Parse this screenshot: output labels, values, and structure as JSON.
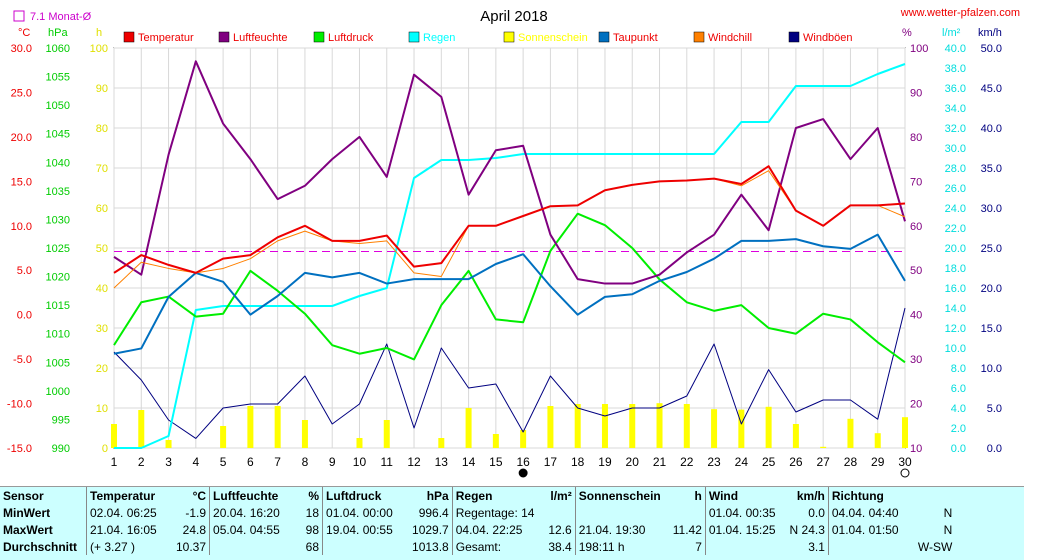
{
  "chart_data": {
    "type": "line",
    "title": "April 2018",
    "url": "www.wetter-pfalzen.com",
    "avg_label": "7.1 Monat-Ø",
    "axis_units": {
      "temp": "°C",
      "press": "hPa",
      "sun": "h",
      "hum": "%",
      "rain": "l/m²",
      "wind": "km/h"
    },
    "axes": {
      "temp": {
        "min": -15,
        "max": 30,
        "ticks": [
          "30.0",
          "25.0",
          "20.0",
          "15.0",
          "10.0",
          "5.0",
          "0.0",
          "-5.0",
          "-10.0",
          "-15.0"
        ]
      },
      "press": {
        "min": 990,
        "max": 1060,
        "ticks": [
          "1060",
          "1055",
          "1050",
          "1045",
          "1040",
          "1035",
          "1030",
          "1025",
          "1020",
          "1015",
          "1010",
          "1005",
          "1000",
          "995",
          "990"
        ]
      },
      "sun": {
        "min": 0,
        "max": 100,
        "ticks": [
          "100",
          "90",
          "80",
          "70",
          "60",
          "50",
          "40",
          "30",
          "20",
          "10",
          "0"
        ]
      },
      "hum": {
        "min": 10,
        "max": 100,
        "ticks": [
          "100",
          "90",
          "80",
          "70",
          "60",
          "50",
          "40",
          "30",
          "20",
          "10"
        ]
      },
      "rain": {
        "min": 0,
        "max": 40,
        "ticks": [
          "40.0",
          "38.0",
          "36.0",
          "34.0",
          "32.0",
          "30.0",
          "28.0",
          "26.0",
          "24.0",
          "22.0",
          "20.0",
          "18.0",
          "16.0",
          "14.0",
          "12.0",
          "10.0",
          "8.0",
          "6.0",
          "4.0",
          "2.0",
          "0.0"
        ]
      },
      "wind": {
        "min": 0,
        "max": 50,
        "ticks": [
          "50.0",
          "45.0",
          "40.0",
          "35.0",
          "30.0",
          "25.0",
          "20.0",
          "15.0",
          "10.0",
          "5.0",
          "0.0"
        ]
      }
    },
    "days": [
      "1",
      "2",
      "3",
      "4",
      "5",
      "6",
      "7",
      "8",
      "9",
      "10",
      "11",
      "12",
      "13",
      "14",
      "15",
      "16",
      "17",
      "18",
      "19",
      "20",
      "21",
      "22",
      "23",
      "24",
      "25",
      "26",
      "27",
      "28",
      "29",
      "30"
    ],
    "legend": [
      {
        "name": "Temperatur",
        "color": "#ee0000"
      },
      {
        "name": "Luftfeuchte",
        "color": "#800080"
      },
      {
        "name": "Luftdruck",
        "color": "#00ee00"
      },
      {
        "name": "Regen",
        "color": "#00ffff"
      },
      {
        "name": "Sonnenschein",
        "color": "#ffff00"
      },
      {
        "name": "Taupunkt",
        "color": "#0070c0"
      },
      {
        "name": "Windchill",
        "color": "#ff8000"
      },
      {
        "name": "Windböen",
        "color": "#000080"
      }
    ],
    "series": {
      "temperature": [
        4.7,
        6.7,
        5.6,
        4.7,
        6.3,
        6.7,
        8.7,
        10.0,
        8.3,
        8.3,
        8.9,
        5.4,
        5.8,
        10.0,
        10.0,
        11.1,
        12.2,
        12.3,
        14.0,
        14.6,
        15.0,
        15.1,
        15.3,
        14.7,
        16.7,
        11.7,
        10.0,
        12.3,
        12.3,
        12.5
      ],
      "humidity": [
        53,
        49,
        76,
        97,
        83,
        75,
        66,
        69,
        75,
        80,
        71,
        94,
        89,
        67,
        77,
        78,
        58,
        48,
        47,
        47,
        49,
        54,
        58,
        67,
        59,
        82,
        84,
        75,
        82,
        61
      ],
      "pressure": [
        1008,
        1015.5,
        1016.5,
        1013,
        1013.5,
        1021,
        1017.5,
        1013.5,
        1008,
        1006.5,
        1007.5,
        1005.5,
        1015,
        1021,
        1012.5,
        1012,
        1024.5,
        1031,
        1029,
        1025,
        1019.5,
        1015.5,
        1014,
        1015,
        1011,
        1010,
        1013.5,
        1012.5,
        1008.5,
        1005
      ],
      "windchill": [
        3.0,
        5.9,
        5.2,
        4.7,
        5.2,
        6.3,
        8.3,
        9.4,
        8.3,
        8.0,
        8.3,
        4.7,
        4.3,
        10.0,
        10.0,
        11.1,
        12.2,
        12.3,
        14.0,
        14.6,
        15.0,
        15.1,
        15.3,
        14.5,
        16.2,
        11.7,
        10.0,
        12.3,
        12.3,
        11.0
      ],
      "dewpoint": [
        -4.4,
        -3.8,
        2.0,
        4.7,
        3.7,
        0.0,
        2.1,
        4.7,
        4.2,
        4.7,
        3.5,
        4.0,
        4.0,
        4.0,
        5.7,
        6.8,
        3.2,
        0.0,
        2.0,
        2.3,
        3.8,
        4.8,
        6.3,
        8.3,
        8.3,
        8.5,
        7.7,
        7.4,
        9.0,
        3.8
      ],
      "gust": [
        12.0,
        8.5,
        3.5,
        1.2,
        5.0,
        5.5,
        5.5,
        9.0,
        3.0,
        5.5,
        13.0,
        2.5,
        12.5,
        7.5,
        8.0,
        2.0,
        9.0,
        5.0,
        4.0,
        5.0,
        5.0,
        6.5,
        13.0,
        3.0,
        9.8,
        4.5,
        6.0,
        6.0,
        3.6,
        17.5
      ],
      "rain_cum": [
        0,
        0,
        1.2,
        13.8,
        14.2,
        14.2,
        14.2,
        14.2,
        14.2,
        15.2,
        16.0,
        27.0,
        28.8,
        28.8,
        29.0,
        29.4,
        29.4,
        29.4,
        29.4,
        29.4,
        29.4,
        29.4,
        29.4,
        32.6,
        32.6,
        36.2,
        36.2,
        36.2,
        37.4,
        38.4
      ],
      "sunshine": [
        6.0,
        9.5,
        2.0,
        0,
        5.5,
        10.5,
        10.5,
        7.0,
        0,
        2.5,
        7.0,
        0,
        2.5,
        10.0,
        3.5,
        4.5,
        10.5,
        11.0,
        11.0,
        11.0,
        11.2,
        11.0,
        9.7,
        9.6,
        10.3,
        6.0,
        0.3,
        7.3,
        3.7,
        7.7
      ]
    },
    "avg_temp": 7.1,
    "grid": true
  },
  "stats": {
    "headers": {
      "sensor": "Sensor",
      "temp": "Temperatur",
      "temp_u": "°C",
      "hum": "Luftfeuchte",
      "hum_u": "%",
      "press": "Luftdruck",
      "press_u": "hPa",
      "rain": "Regen",
      "rain_u": "l/m²",
      "sun": "Sonnenschein",
      "sun_u": "h",
      "wind": "Wind",
      "wind_u": "km/h",
      "dir": "Richtung"
    },
    "rows": [
      {
        "label": "MinWert",
        "temp_t": "02.04.  06:25",
        "temp_v": "-1.9",
        "hum_t": "20.04.  16:20",
        "hum_v": "18",
        "press_t": "01.04.  00:00",
        "press_v": "996.4",
        "rain_t": "Regentage: 14",
        "rain_v": "",
        "sun_t": "",
        "sun_v": "",
        "wind_t": "01.04.  00:35",
        "wind_v": "0.0",
        "dir_t": "04.04.  04:40",
        "dir_v": "N"
      },
      {
        "label": "MaxWert",
        "temp_t": "21.04.  16:05",
        "temp_v": "24.8",
        "hum_t": "05.04.  04:55",
        "hum_v": "98",
        "press_t": "19.04.  00:55",
        "press_v": "1029.7",
        "rain_t": "04.04.  22:25",
        "rain_v": "12.6",
        "sun_t": "21.04.  19:30",
        "sun_v": "11.42",
        "wind_t": "01.04.  15:25",
        "wind_v": "N 24.3",
        "dir_t": "01.04.  01:50",
        "dir_v": "N"
      },
      {
        "label": "Durchschnitt",
        "temp_t": "(+ 3.27 )",
        "temp_v": "10.37",
        "hum_t": "",
        "hum_v": "68",
        "press_t": "",
        "press_v": "1013.8",
        "rain_t": "Gesamt:",
        "rain_v": "38.4",
        "sun_t": "198:11 h",
        "sun_v": "7",
        "wind_t": "",
        "wind_v": "3.1",
        "dir_t": "",
        "dir_v": "W-SW"
      }
    ]
  }
}
